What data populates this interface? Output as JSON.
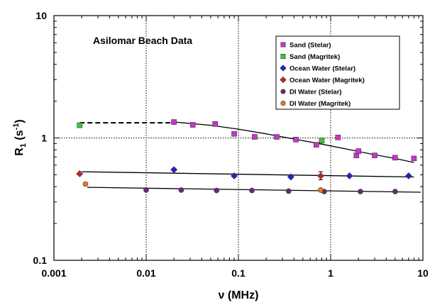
{
  "chart_data": {
    "type": "scatter",
    "title": "",
    "annotation": "Asilomar Beach Data",
    "xlabel": "ν (MHz)",
    "ylabel_main": "R",
    "ylabel_sub": "1",
    "ylabel_rest": " (s",
    "ylabel_sup": "-1",
    "ylabel_close": ")",
    "xscale": "log",
    "yscale": "log",
    "xlim": [
      0.001,
      10
    ],
    "ylim": [
      0.1,
      10
    ],
    "x_ticks": [
      {
        "value": 0.001,
        "label": "0.001"
      },
      {
        "value": 0.01,
        "label": "0.01"
      },
      {
        "value": 0.1,
        "label": "0.1"
      },
      {
        "value": 1,
        "label": "1"
      },
      {
        "value": 10,
        "label": "10"
      }
    ],
    "y_ticks": [
      {
        "value": 0.1,
        "label": "0.1"
      },
      {
        "value": 1,
        "label": "1"
      },
      {
        "value": 10,
        "label": "10"
      }
    ],
    "grid": "dotted major lines at each decade",
    "legend_position": "top-right",
    "series": [
      {
        "name": "Sand (Stelar)",
        "marker": "square",
        "color": "#cc33cc",
        "x": [
          0.02,
          0.032,
          0.056,
          0.09,
          0.15,
          0.26,
          0.42,
          0.7,
          1.2,
          1.9,
          2.0,
          3.0,
          5.0,
          8.0
        ],
        "y": [
          1.35,
          1.28,
          1.3,
          1.08,
          1.02,
          1.02,
          0.97,
          0.88,
          1.01,
          0.72,
          0.78,
          0.72,
          0.69,
          0.68
        ]
      },
      {
        "name": "Sand (Magritek)",
        "marker": "square",
        "color": "#33cc33",
        "x": [
          0.0019,
          0.8
        ],
        "y": [
          1.27,
          0.95
        ]
      },
      {
        "name": "Ocean Water (Stelar)",
        "marker": "diamond",
        "color": "#2222cc",
        "x": [
          0.02,
          0.09,
          0.37,
          1.6,
          7.0
        ],
        "y": [
          0.55,
          0.49,
          0.48,
          0.49,
          0.49
        ]
      },
      {
        "name": "Ocean Water (Magritek)",
        "marker": "diamond",
        "color": "#cc2222",
        "x": [
          0.0019,
          0.78
        ],
        "y": [
          0.51,
          0.49
        ]
      },
      {
        "name": "DI Water (Stelar)",
        "marker": "circle",
        "color": "#6a2878",
        "x": [
          0.01,
          0.024,
          0.058,
          0.14,
          0.35,
          0.85,
          2.1,
          5.0
        ],
        "y": [
          0.375,
          0.375,
          0.372,
          0.372,
          0.368,
          0.365,
          0.365,
          0.365
        ]
      },
      {
        "name": "DI Water (Magritek)",
        "marker": "circle",
        "color": "#ee7722",
        "x": [
          0.0022,
          0.78
        ],
        "y": [
          0.42,
          0.375
        ]
      }
    ],
    "error_bars": [
      {
        "series": "Ocean Water (Magritek)",
        "x": 0.78,
        "y": 0.49,
        "low": 0.455,
        "high": 0.53
      }
    ],
    "fit_lines": [
      {
        "name": "sand-fit-curve",
        "style": "solid",
        "x": [
          0.02,
          0.05,
          0.1,
          0.2,
          0.4,
          0.8,
          1.5,
          3.0,
          5.0,
          8.0
        ],
        "y": [
          1.35,
          1.27,
          1.18,
          1.08,
          0.98,
          0.89,
          0.81,
          0.73,
          0.68,
          0.63
        ]
      },
      {
        "name": "sand-dashed-extension",
        "style": "dashed",
        "x": [
          0.0019,
          0.02
        ],
        "y": [
          1.33,
          1.33
        ]
      },
      {
        "name": "ocean-fit-line",
        "style": "solid",
        "x": [
          0.002,
          8.0
        ],
        "y": [
          0.53,
          0.48
        ]
      },
      {
        "name": "di-fit-line",
        "style": "solid",
        "x": [
          0.0023,
          9.5
        ],
        "y": [
          0.395,
          0.36
        ]
      }
    ]
  }
}
